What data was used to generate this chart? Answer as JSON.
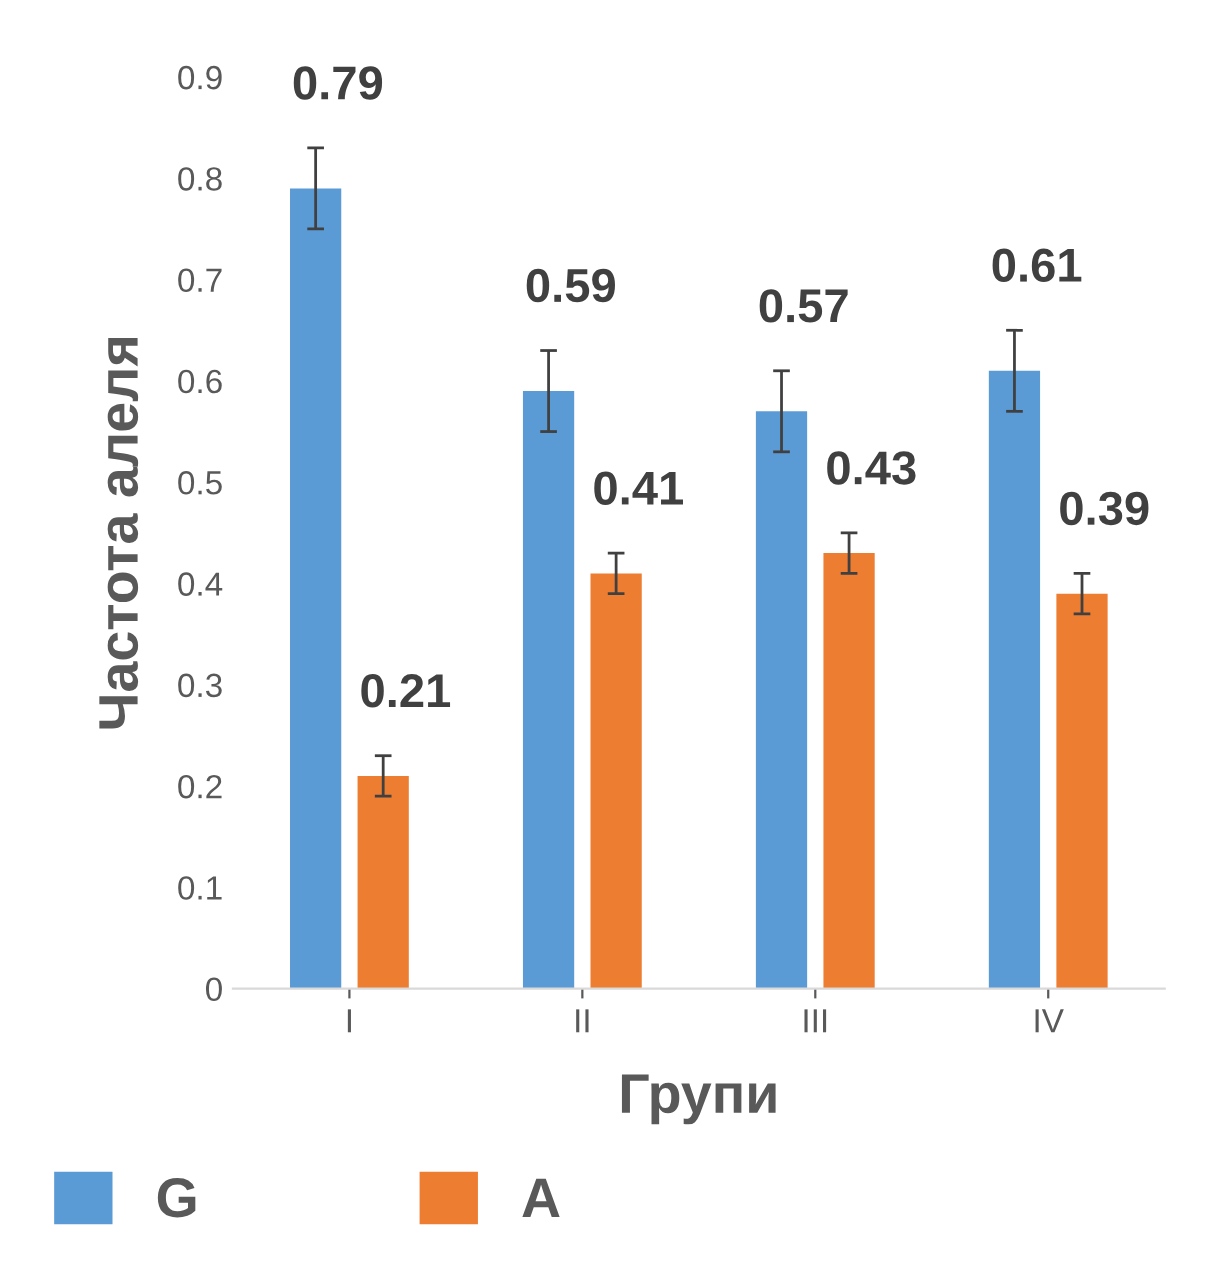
{
  "chart_data": {
    "type": "bar",
    "xlabel": "Групи",
    "ylabel": "Частота алеля",
    "categories": [
      "I",
      "II",
      "III",
      "IV"
    ],
    "series": [
      {
        "name": "G",
        "color": "#5b9bd5",
        "values": [
          0.79,
          0.59,
          0.57,
          0.61
        ],
        "errors": [
          0.04,
          0.04,
          0.04,
          0.04
        ]
      },
      {
        "name": "A",
        "color": "#ed7d31",
        "values": [
          0.21,
          0.41,
          0.43,
          0.39
        ],
        "errors": [
          0.02,
          0.02,
          0.02,
          0.02
        ]
      }
    ],
    "ylim": [
      0,
      0.9
    ],
    "yticks": [
      0,
      0.1,
      0.2,
      0.3,
      0.4,
      0.5,
      0.6,
      0.7,
      0.8,
      0.9
    ],
    "grid": false,
    "legend": "bottom left",
    "data_labels": true
  }
}
